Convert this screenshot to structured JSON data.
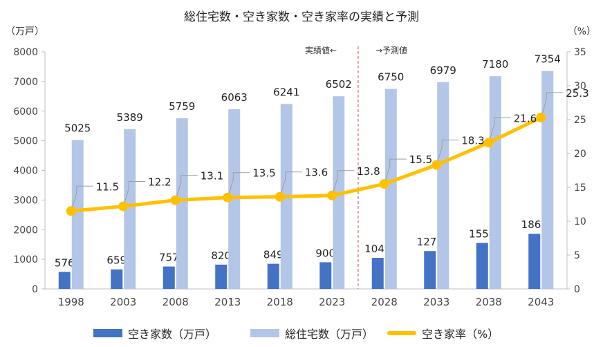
{
  "chart_data": {
    "type": "bar",
    "title": "総住宅数・空き家数・空き家率の実績と予測",
    "left_unit": "（万戸）",
    "right_unit": "（%）",
    "note_actual": "実績値←",
    "note_forecast": "→予測値",
    "categories": [
      "1998",
      "2003",
      "2008",
      "2013",
      "2018",
      "2023",
      "2028",
      "2033",
      "2038",
      "2043"
    ],
    "series": [
      {
        "name": "空き家数（万戸）",
        "type": "bar",
        "axis": "left",
        "color": "#4472C4",
        "values": [
          576,
          659,
          757,
          820,
          849,
          900,
          1049,
          1277,
          1554,
          1861
        ]
      },
      {
        "name": "総住宅数（万戸）",
        "type": "bar",
        "axis": "left",
        "color": "#B4C6E7",
        "values": [
          5025,
          5389,
          5759,
          6063,
          6241,
          6502,
          6750,
          6979,
          7180,
          7354
        ]
      },
      {
        "name": "空き家率（%）",
        "type": "line",
        "axis": "right",
        "color": "#FFC000",
        "values": [
          11.5,
          12.2,
          13.1,
          13.5,
          13.6,
          13.8,
          15.5,
          18.3,
          21.6,
          25.3
        ]
      }
    ],
    "y_left": {
      "min": 0,
      "max": 8000,
      "ticks": [
        0,
        1000,
        2000,
        3000,
        4000,
        5000,
        6000,
        7000,
        8000
      ]
    },
    "y_right": {
      "min": 0,
      "max": 35,
      "ticks": [
        0,
        5,
        10,
        15,
        20,
        25,
        30,
        35
      ]
    },
    "divider_after_category": "2023",
    "grid": false,
    "legend_position": "bottom"
  }
}
